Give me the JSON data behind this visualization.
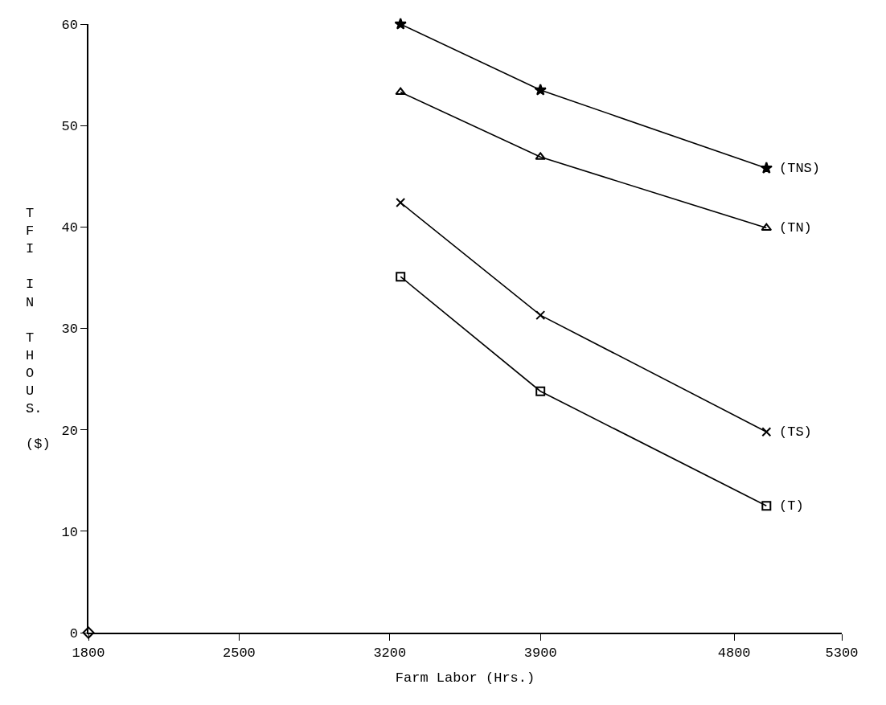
{
  "chart_data": {
    "type": "line",
    "xlabel": "Farm Labor (Hrs.)",
    "ylabel": "TFI IN THOUS. ($)",
    "xlim": [
      1800,
      5300
    ],
    "xticks": [
      1800,
      2500,
      3200,
      3900,
      4800,
      5300
    ],
    "ylim": [
      0,
      60
    ],
    "yticks": [
      0,
      10,
      20,
      30,
      40,
      50,
      60
    ],
    "legend": false,
    "series": [
      {
        "name": "(TNS)",
        "color": "#000000",
        "marker": "star",
        "x": [
          3250,
          3900,
          4950
        ],
        "values": [
          60,
          53.5,
          45.8
        ]
      },
      {
        "name": "(TN)",
        "color": "#000000",
        "marker": "triangle",
        "x": [
          3250,
          3900,
          4950
        ],
        "values": [
          53.3,
          46.9,
          39.9
        ]
      },
      {
        "name": "(TS)",
        "color": "#000000",
        "marker": "cross",
        "x": [
          3250,
          3900,
          4950
        ],
        "values": [
          42.4,
          31.3,
          19.8
        ]
      },
      {
        "name": "(T)",
        "color": "#000000",
        "marker": "square",
        "x": [
          3250,
          3900,
          4950
        ],
        "values": [
          35.1,
          23.8,
          12.5
        ]
      },
      {
        "type": "scatter",
        "color": "#000000",
        "marker": "diamond",
        "x": [
          1800
        ],
        "values": [
          0
        ]
      }
    ]
  }
}
